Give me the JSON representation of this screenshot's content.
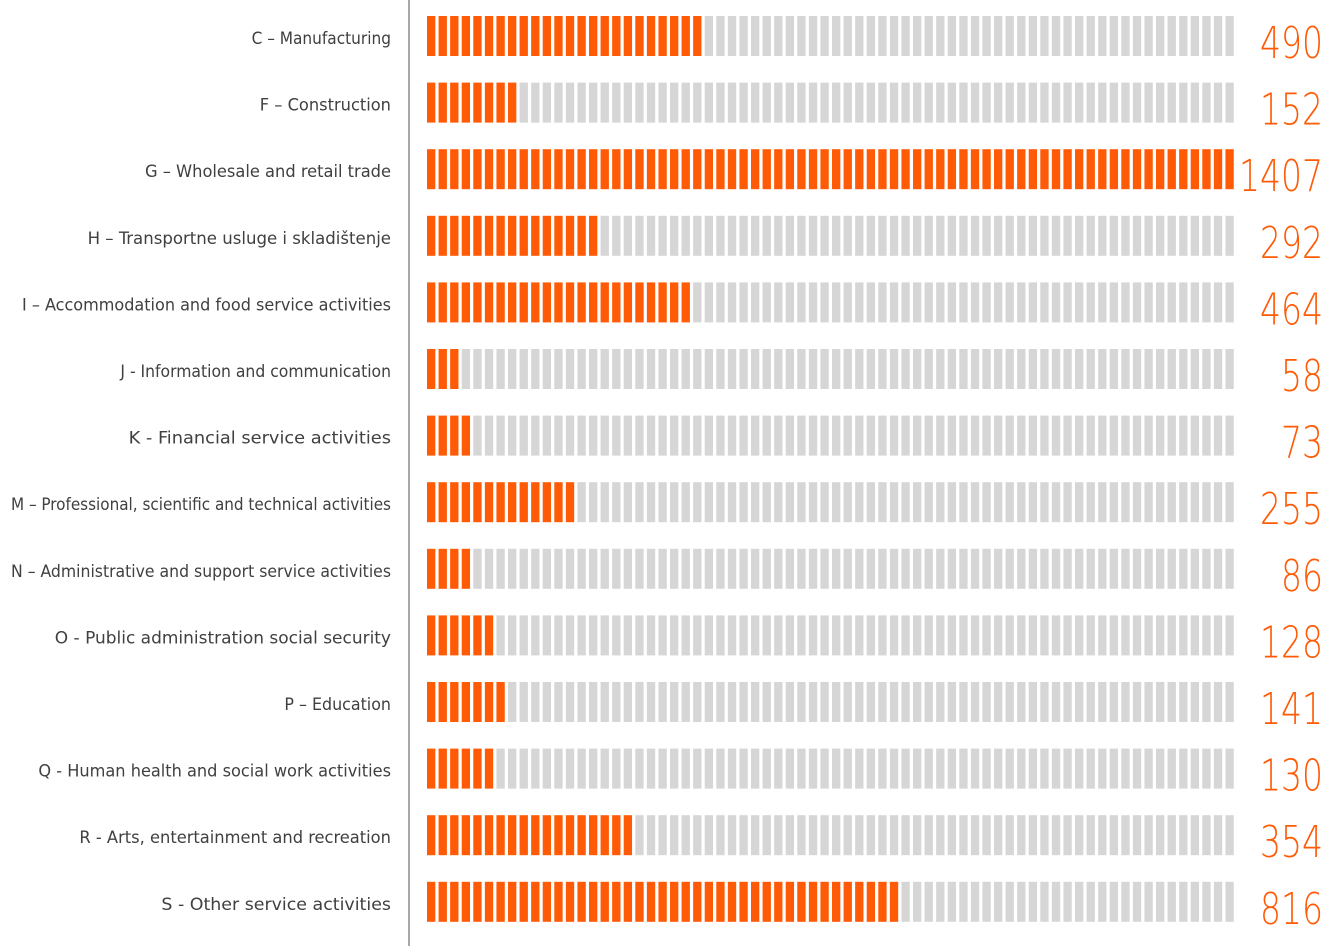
{
  "chart_data": {
    "type": "bar",
    "orientation": "horizontal",
    "style": "segmented-bars",
    "segments_per_bar": 70,
    "categories": [
      "C – Manufacturing",
      "F – Construction",
      "G – Wholesale and retail trade",
      "H – Transportne usluge i skladištenje",
      "I – Accommodation and food service activities",
      "J - Information and communication",
      "K - Financial service activities",
      "M – Professional, scientific and technical activities",
      "N – Administrative and support service activities",
      "O - Public administration social security",
      "P – Education",
      "Q - Human health and social work activities",
      "R - Arts, entertainment and recreation",
      "S - Other service activities"
    ],
    "values": [
      490,
      152,
      1407,
      292,
      464,
      58,
      73,
      255,
      86,
      128,
      141,
      130,
      354,
      816
    ],
    "value_labels": [
      "490",
      "152",
      "1407",
      "292",
      "464",
      "58",
      "73",
      "255",
      "86",
      "128",
      "141",
      "130",
      "354",
      "816"
    ],
    "xlim": [
      0,
      1407
    ],
    "grid": false,
    "legend": "none",
    "colors": {
      "filled": "#ff5a05",
      "empty": "#d6d6d6",
      "value_text": "#ff5a05",
      "label_text": "#404040",
      "axis": "#8c8c8c"
    }
  }
}
